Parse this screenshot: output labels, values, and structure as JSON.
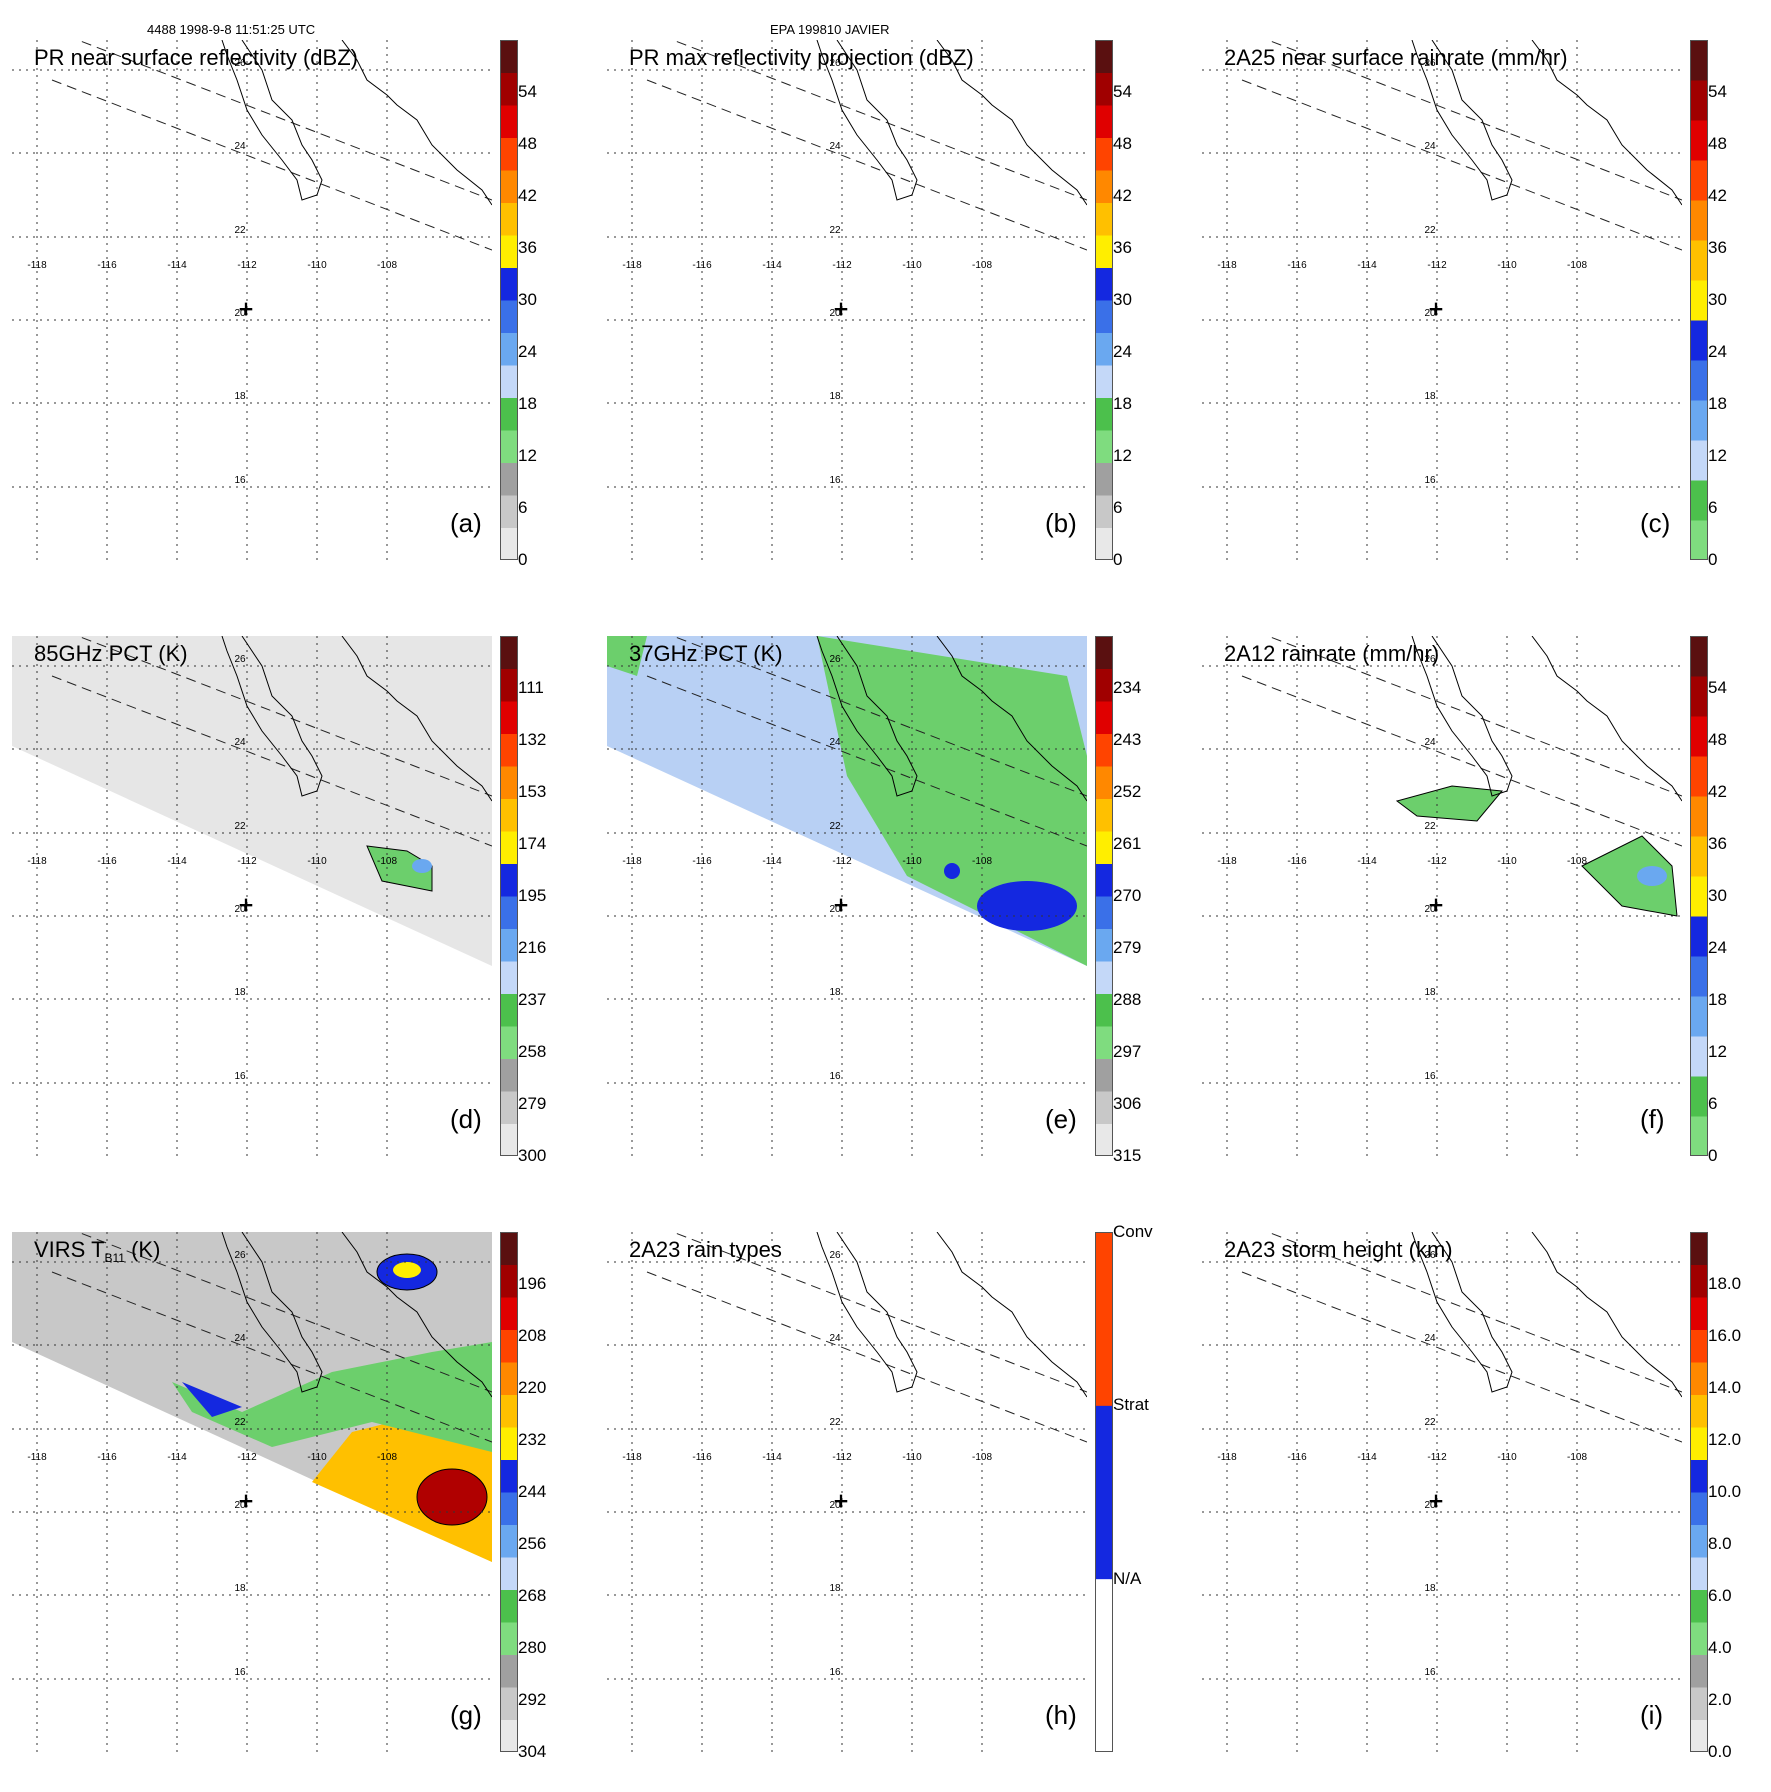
{
  "header": {
    "left_title": "4488 1998-9-8 11:51:25 UTC",
    "center_title": "EPA 199810 JAVIER"
  },
  "axes": {
    "lon_labels": [
      "-118",
      "-116",
      "-114",
      "-112",
      "-110",
      "-108"
    ],
    "lat_labels": [
      "26",
      "24",
      "22",
      "20",
      "18",
      "16"
    ]
  },
  "panels": [
    {
      "id": "a",
      "title": "PR near surface reflectivity (dBZ)",
      "label": "(a)",
      "ticks": [
        "54",
        "48",
        "42",
        "36",
        "30",
        "24",
        "18",
        "12",
        "6",
        "0"
      ]
    },
    {
      "id": "b",
      "title": "PR max reflectivity projection (dBZ)",
      "label": "(b)",
      "ticks": [
        "54",
        "48",
        "42",
        "36",
        "30",
        "24",
        "18",
        "12",
        "6",
        "0"
      ]
    },
    {
      "id": "c",
      "title": "2A25 near surface rainrate (mm/hr)",
      "label": "(c)",
      "ticks": [
        "54",
        "48",
        "42",
        "36",
        "30",
        "24",
        "18",
        "12",
        "6",
        "0"
      ]
    },
    {
      "id": "d",
      "title": "85GHz PCT (K)",
      "label": "(d)",
      "ticks": [
        "111",
        "132",
        "153",
        "174",
        "195",
        "216",
        "237",
        "258",
        "279",
        "300"
      ]
    },
    {
      "id": "e",
      "title": "37GHz PCT (K)",
      "label": "(e)",
      "ticks": [
        "234",
        "243",
        "252",
        "261",
        "270",
        "279",
        "288",
        "297",
        "306",
        "315"
      ]
    },
    {
      "id": "f",
      "title": "2A12 rainrate (mm/hr)",
      "label": "(f)",
      "ticks": [
        "54",
        "48",
        "42",
        "36",
        "30",
        "24",
        "18",
        "12",
        "6",
        "0"
      ]
    },
    {
      "id": "g",
      "title_main": "VIRS T",
      "title_sub": "B11",
      "title_unit": " (K)",
      "label": "(g)",
      "ticks": [
        "196",
        "208",
        "220",
        "232",
        "244",
        "256",
        "268",
        "280",
        "292",
        "304"
      ]
    },
    {
      "id": "h",
      "title": "2A23 rain types",
      "label": "(h)",
      "ticks": [
        "Conv",
        "Strat",
        "N/A"
      ]
    },
    {
      "id": "i",
      "title": "2A23 storm height (km)",
      "label": "(i)",
      "ticks": [
        "18.0",
        "16.0",
        "14.0",
        "12.0",
        "10.0",
        "8.0",
        "6.0",
        "4.0",
        "2.0",
        "0.0"
      ]
    }
  ],
  "colors": {
    "colorbar_default": [
      "#e8e8e8",
      "#c8c8c8",
      "#a0a0a0",
      "#7fdc7f",
      "#4cc04c",
      "#c4d8f8",
      "#6aa8f0",
      "#3a70e8",
      "#1428e0",
      "#ffee00",
      "#ffc000",
      "#ff8800",
      "#ff4400",
      "#e00000",
      "#a00000",
      "#5a1010"
    ],
    "colorbar_rain": [
      "#7fdc7f",
      "#4cc04c",
      "#c4d8f8",
      "#6aa8f0",
      "#3a70e8",
      "#1428e0",
      "#ffee00",
      "#ffc000",
      "#ff8800",
      "#ff4400",
      "#e00000",
      "#a00000",
      "#5a1010"
    ],
    "colorbar_types": [
      "#ffffff",
      "#1428e0",
      "#ff4400"
    ]
  }
}
